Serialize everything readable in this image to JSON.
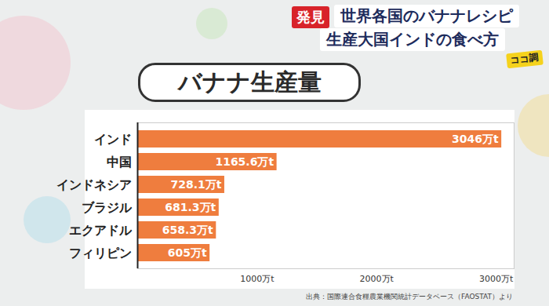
{
  "header": {
    "badge": "発見",
    "line1": "世界各国のバナナレシピ",
    "line2": "生産大国インドの食べ方",
    "logo": "ココ調"
  },
  "chart_data": {
    "type": "bar",
    "orientation": "horizontal",
    "title": "バナナ生産量",
    "categories": [
      "インド",
      "中国",
      "インドネシア",
      "ブラジル",
      "エクアドル",
      "フィリピン"
    ],
    "values": [
      3046,
      1165.6,
      728.1,
      681.3,
      658.3,
      605
    ],
    "value_labels": [
      "3046万t",
      "1165.6万t",
      "728.1万t",
      "681.3万t",
      "658.3万t",
      "605万t"
    ],
    "data_labels": true,
    "color": "#ef7d3e",
    "grid": false,
    "xlim": [
      0,
      3150
    ],
    "xticks": [
      {
        "value": 1000,
        "label": "1000万t"
      },
      {
        "value": 2000,
        "label": "2000万t"
      },
      {
        "value": 3000,
        "label": "3000万t"
      }
    ],
    "source": "出典：国際連合食糧農業機関統計データベース（FAOSTAT）より"
  }
}
